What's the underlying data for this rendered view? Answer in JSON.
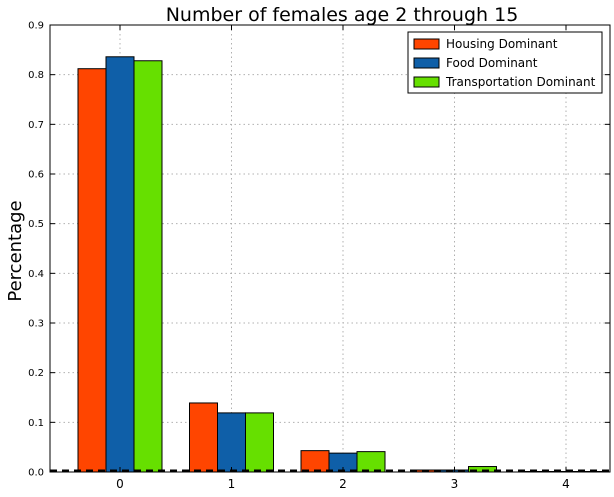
{
  "chart_data": {
    "type": "bar",
    "title": "Number of females age 2 through 15",
    "xlabel": "",
    "ylabel": "Percentage",
    "categories": [
      "0",
      "1",
      "2",
      "3",
      "4"
    ],
    "series": [
      {
        "name": "Housing Dominant",
        "color": "#ff4500",
        "values": [
          0.812,
          0.139,
          0.043,
          0.004,
          0.001
        ]
      },
      {
        "name": "Food Dominant",
        "color": "#0f5fa8",
        "values": [
          0.836,
          0.119,
          0.038,
          0.004,
          0.001
        ]
      },
      {
        "name": "Transportation Dominant",
        "color": "#66e000",
        "values": [
          0.828,
          0.119,
          0.041,
          0.011,
          0.001
        ]
      }
    ],
    "ylim": [
      0,
      0.9
    ],
    "yticks": [
      "0.0",
      "0.1",
      "0.2",
      "0.3",
      "0.4",
      "0.5",
      "0.6",
      "0.7",
      "0.8",
      "0.9"
    ],
    "grid": true,
    "legend_position": "top-right"
  }
}
